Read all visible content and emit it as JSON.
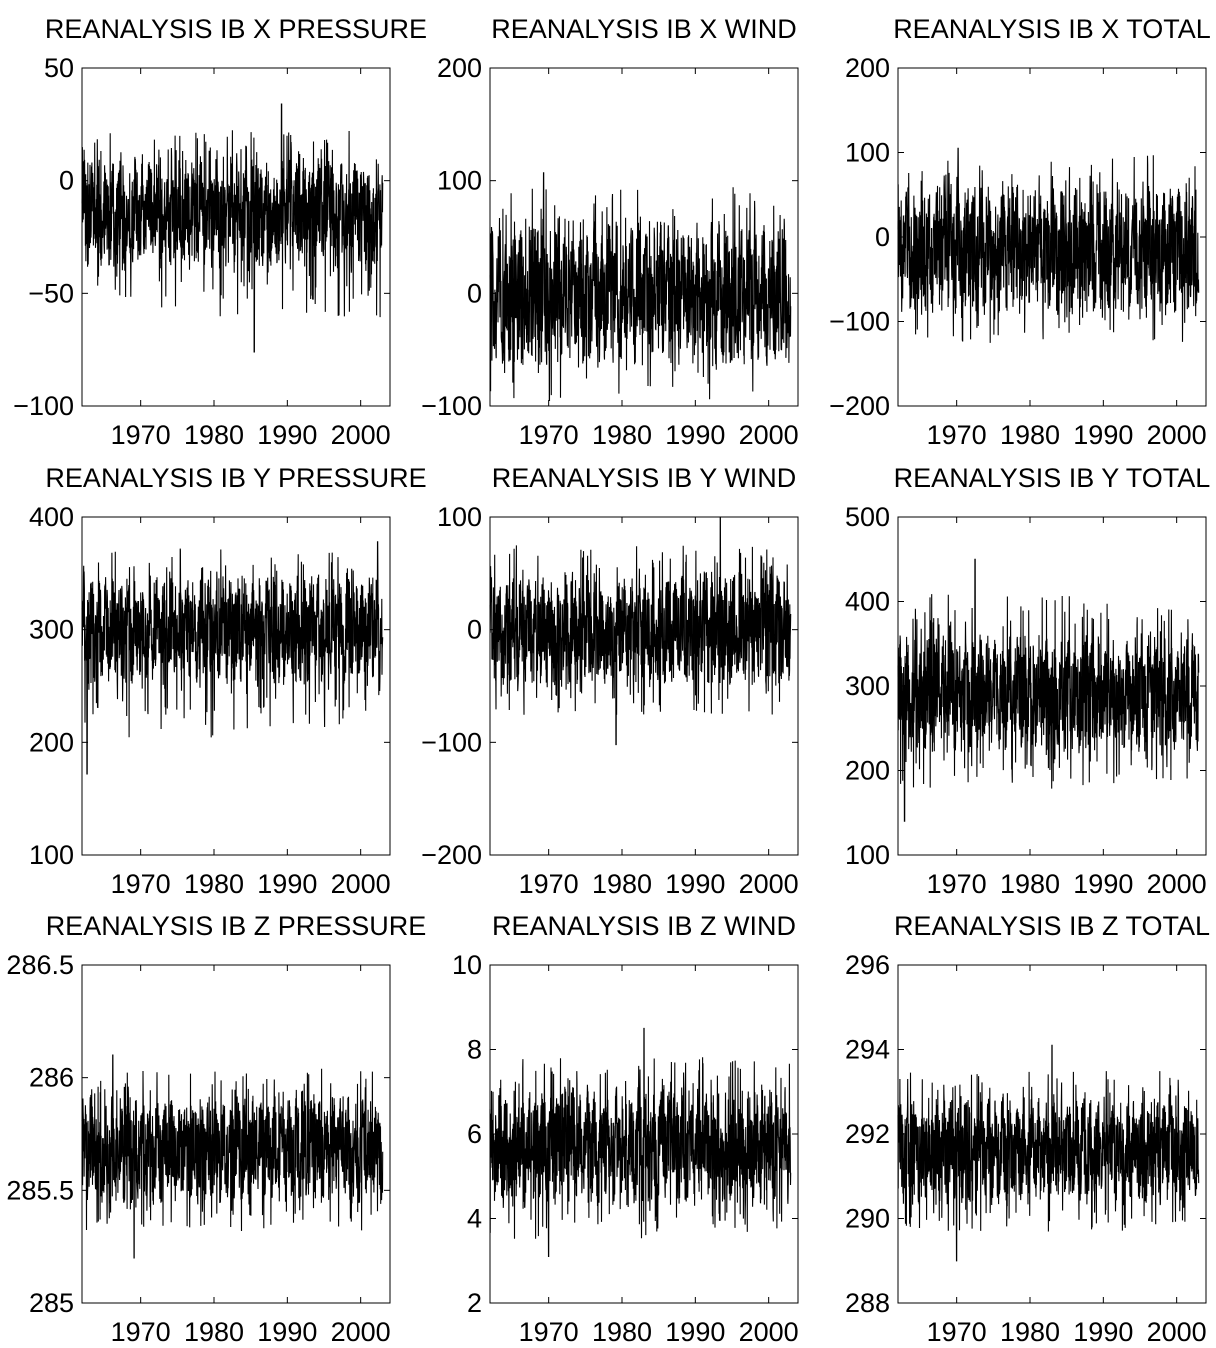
{
  "chart_data": [
    {
      "type": "line",
      "title": "REANALYSIS IB X PRESSURE",
      "xlabel": "",
      "ylabel": "",
      "xlim": [
        1962,
        2004
      ],
      "ylim": [
        -100,
        50
      ],
      "xticks": [
        1970,
        1980,
        1990,
        2000
      ],
      "yticks": [
        -100,
        -50,
        0,
        50
      ],
      "ytick_labels": [
        "−100",
        "−50",
        "0",
        "50"
      ],
      "grid": false,
      "series": [
        {
          "x_range": [
            1962,
            2003
          ],
          "center": -15,
          "band_low": -35,
          "band_high": 5,
          "max": 34,
          "min": -76,
          "max_at": 1989.2,
          "min_at": 1985.5
        }
      ]
    },
    {
      "type": "line",
      "title": "REANALYSIS IB X WIND",
      "xlabel": "",
      "ylabel": "",
      "xlim": [
        1962,
        2004
      ],
      "ylim": [
        -100,
        200
      ],
      "xticks": [
        1970,
        1980,
        1990,
        2000
      ],
      "yticks": [
        -100,
        0,
        100,
        200
      ],
      "ytick_labels": [
        "−100",
        "0",
        "100",
        "200"
      ],
      "grid": false,
      "series": [
        {
          "x_range": [
            1962,
            2003
          ],
          "center": 0,
          "band_low": -45,
          "band_high": 55,
          "max": 107,
          "min": -95,
          "max_at": 1969.3,
          "min_at": 1970.1
        }
      ]
    },
    {
      "type": "line",
      "title": "REANALYSIS IB X TOTAL",
      "xlabel": "",
      "ylabel": "",
      "xlim": [
        1962,
        2004
      ],
      "ylim": [
        -200,
        200
      ],
      "xticks": [
        1970,
        1980,
        1990,
        2000
      ],
      "yticks": [
        -200,
        -100,
        0,
        100,
        200
      ],
      "ytick_labels": [
        "−200",
        "−100",
        "0",
        "100",
        "200"
      ],
      "grid": false,
      "series": [
        {
          "x_range": [
            1962,
            2003
          ],
          "center": -15,
          "band_low": -75,
          "band_high": 45,
          "max": 105,
          "min": -123,
          "max_at": 1970.2,
          "min_at": 1970.8
        }
      ]
    },
    {
      "type": "line",
      "title": "REANALYSIS IB Y PRESSURE",
      "xlabel": "",
      "ylabel": "",
      "xlim": [
        1962,
        2004
      ],
      "ylim": [
        100,
        400
      ],
      "xticks": [
        1970,
        1980,
        1990,
        2000
      ],
      "yticks": [
        100,
        200,
        300,
        400
      ],
      "ytick_labels": [
        "100",
        "200",
        "300",
        "400"
      ],
      "grid": false,
      "series": [
        {
          "x_range": [
            1962,
            2003
          ],
          "center": 300,
          "band_low": 262,
          "band_high": 338,
          "max": 378,
          "min": 172,
          "max_at": 2002.3,
          "min_at": 1962.7
        }
      ]
    },
    {
      "type": "line",
      "title": "REANALYSIS IB Y WIND",
      "xlabel": "",
      "ylabel": "",
      "xlim": [
        1962,
        2004
      ],
      "ylim": [
        -200,
        100
      ],
      "xticks": [
        1970,
        1980,
        1990,
        2000
      ],
      "yticks": [
        -200,
        -100,
        0,
        100
      ],
      "ytick_labels": [
        "−200",
        "−100",
        "0",
        "100"
      ],
      "grid": false,
      "series": [
        {
          "x_range": [
            1962,
            2003
          ],
          "center": 0,
          "band_low": -40,
          "band_high": 40,
          "max": 100,
          "min": -102,
          "max_at": 1993.4,
          "min_at": 1979.2
        }
      ]
    },
    {
      "type": "line",
      "title": "REANALYSIS IB Y TOTAL",
      "xlabel": "",
      "ylabel": "",
      "xlim": [
        1962,
        2004
      ],
      "ylim": [
        100,
        500
      ],
      "xticks": [
        1970,
        1980,
        1990,
        2000
      ],
      "yticks": [
        100,
        200,
        300,
        400,
        500
      ],
      "ytick_labels": [
        "100",
        "200",
        "300",
        "400",
        "500"
      ],
      "grid": false,
      "series": [
        {
          "x_range": [
            1962,
            2003
          ],
          "center": 290,
          "band_low": 235,
          "band_high": 345,
          "max": 450,
          "min": 140,
          "max_at": 1972.5,
          "min_at": 1962.9
        }
      ]
    },
    {
      "type": "line",
      "title": "REANALYSIS IB Z PRESSURE",
      "xlabel": "",
      "ylabel": "",
      "xlim": [
        1962,
        2004
      ],
      "ylim": [
        285,
        286.5
      ],
      "xticks": [
        1970,
        1980,
        1990,
        2000
      ],
      "yticks": [
        285,
        285.5,
        286,
        286.5
      ],
      "ytick_labels": [
        "285",
        "285.5",
        "286",
        "286.5"
      ],
      "grid": false,
      "series": [
        {
          "x_range": [
            1962,
            2003
          ],
          "center": 285.68,
          "band_low": 285.5,
          "band_high": 285.88,
          "max": 286.1,
          "min": 285.2,
          "max_at": 1966.2,
          "min_at": 1969.1
        }
      ]
    },
    {
      "type": "line",
      "title": "REANALYSIS IB Z WIND",
      "xlabel": "",
      "ylabel": "",
      "xlim": [
        1962,
        2004
      ],
      "ylim": [
        2,
        10
      ],
      "xticks": [
        1970,
        1980,
        1990,
        2000
      ],
      "yticks": [
        2,
        4,
        6,
        8,
        10
      ],
      "ytick_labels": [
        "2",
        "4",
        "6",
        "8",
        "10"
      ],
      "grid": false,
      "series": [
        {
          "x_range": [
            1962,
            2003
          ],
          "center": 5.7,
          "band_low": 4.5,
          "band_high": 6.8,
          "max": 8.5,
          "min": 3.1,
          "max_at": 1983.0,
          "min_at": 1970.0
        }
      ]
    },
    {
      "type": "line",
      "title": "REANALYSIS IB Z TOTAL",
      "xlabel": "",
      "ylabel": "",
      "xlim": [
        1962,
        2004
      ],
      "ylim": [
        288,
        296
      ],
      "xticks": [
        1970,
        1980,
        1990,
        2000
      ],
      "yticks": [
        288,
        290,
        292,
        294,
        296
      ],
      "ytick_labels": [
        "288",
        "290",
        "292",
        "294",
        "296"
      ],
      "grid": false,
      "series": [
        {
          "x_range": [
            1962,
            2003
          ],
          "center": 291.6,
          "band_low": 290.5,
          "band_high": 292.5,
          "max": 294.1,
          "min": 289.0,
          "max_at": 1983.0,
          "min_at": 1970.0
        }
      ]
    }
  ]
}
